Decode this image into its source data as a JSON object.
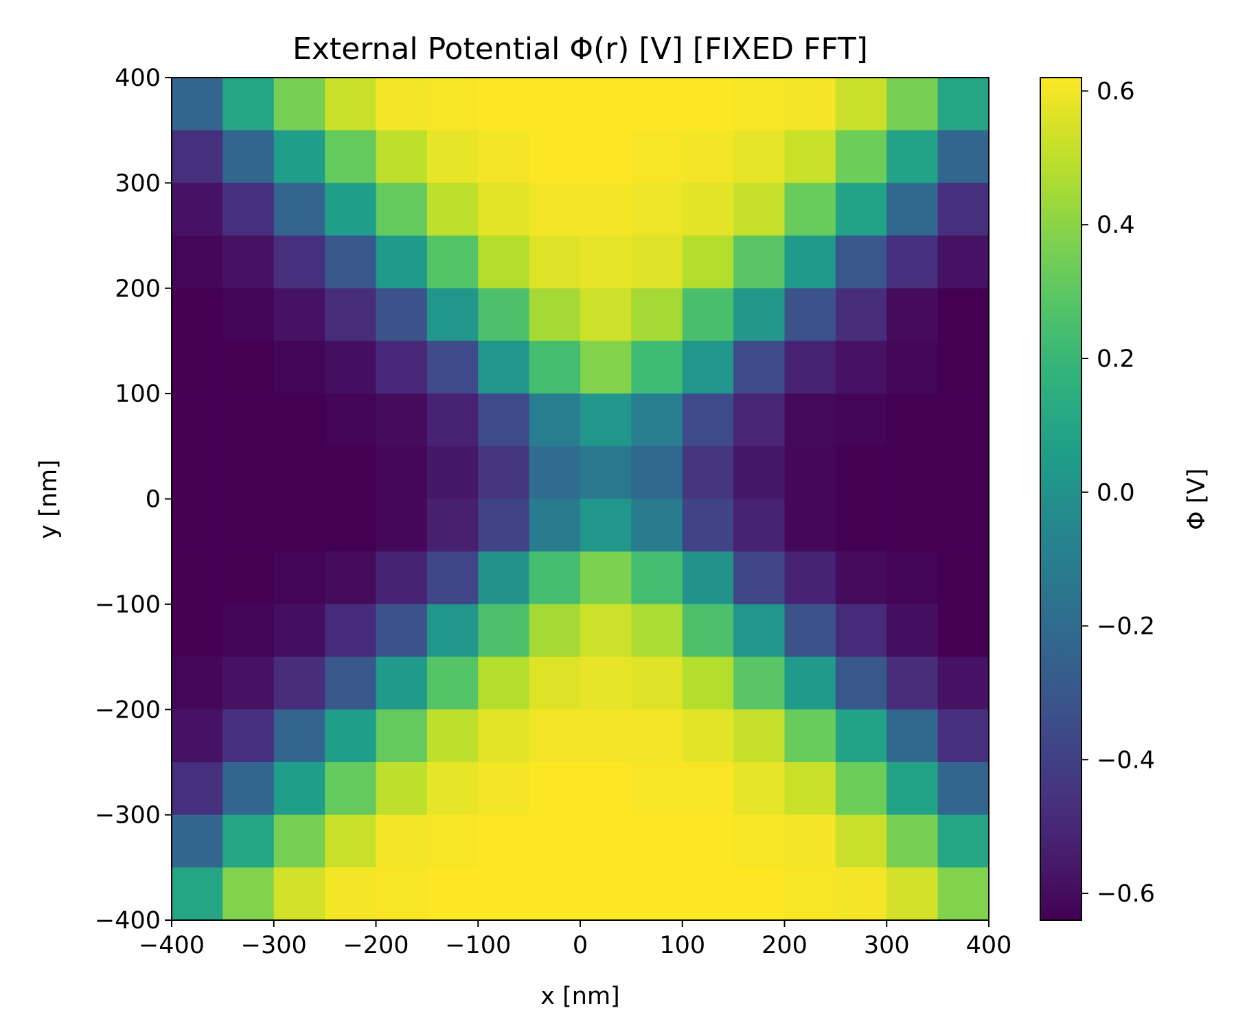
{
  "chart_data": {
    "type": "heatmap",
    "title": "External Potential Φ(r) [V] [FIXED FFT]",
    "xlabel": "x [nm]",
    "ylabel": "y [nm]",
    "colorbar_label": "Φ [V]",
    "colormap": "viridis",
    "xlim": [
      -400,
      400
    ],
    "ylim": [
      -400,
      400
    ],
    "x_ticks": [
      -400,
      -300,
      -200,
      -100,
      0,
      100,
      200,
      300,
      400
    ],
    "y_ticks": [
      -400,
      -300,
      -200,
      -100,
      0,
      100,
      200,
      300,
      400
    ],
    "x_tick_labels": [
      "−400",
      "−300",
      "−200",
      "−100",
      "0",
      "100",
      "200",
      "300",
      "400"
    ],
    "y_tick_labels": [
      "−400",
      "−300",
      "−200",
      "−100",
      "0",
      "100",
      "200",
      "300",
      "400"
    ],
    "vmin": -0.64,
    "vmax": 0.62,
    "colorbar_ticks": [
      -0.6,
      -0.4,
      -0.2,
      0.0,
      0.2,
      0.4,
      0.6
    ],
    "colorbar_tick_labels": [
      "−0.6",
      "−0.4",
      "−0.2",
      "0.0",
      "0.2",
      "0.4",
      "0.6"
    ],
    "grid": false,
    "cell_size": 50,
    "x_centers": [
      -375,
      -325,
      -275,
      -225,
      -175,
      -125,
      -75,
      -25,
      25,
      75,
      125,
      175,
      225,
      275,
      325,
      375
    ],
    "y_centers": [
      375,
      325,
      275,
      225,
      175,
      125,
      75,
      25,
      -25,
      -75,
      -125,
      -175,
      -225,
      -275,
      -325,
      -375
    ],
    "values": [
      [
        -0.23,
        0.1,
        0.36,
        0.52,
        0.6,
        0.61,
        0.62,
        0.62,
        0.62,
        0.62,
        0.62,
        0.61,
        0.6,
        0.52,
        0.36,
        0.1
      ],
      [
        -0.47,
        -0.23,
        0.06,
        0.32,
        0.5,
        0.58,
        0.6,
        0.62,
        0.62,
        0.61,
        0.6,
        0.58,
        0.52,
        0.34,
        0.08,
        -0.23
      ],
      [
        -0.58,
        -0.47,
        -0.24,
        0.06,
        0.32,
        0.5,
        0.57,
        0.6,
        0.6,
        0.59,
        0.57,
        0.51,
        0.33,
        0.08,
        -0.22,
        -0.47
      ],
      [
        -0.62,
        -0.58,
        -0.47,
        -0.3,
        0.04,
        0.28,
        0.48,
        0.56,
        0.58,
        0.56,
        0.48,
        0.29,
        0.04,
        -0.3,
        -0.47,
        -0.58
      ],
      [
        -0.64,
        -0.63,
        -0.58,
        -0.48,
        -0.32,
        0.02,
        0.26,
        0.45,
        0.53,
        0.45,
        0.25,
        0.03,
        -0.32,
        -0.48,
        -0.6,
        -0.64
      ],
      [
        -0.64,
        -0.64,
        -0.63,
        -0.59,
        -0.5,
        -0.36,
        0.02,
        0.24,
        0.38,
        0.22,
        0.02,
        -0.36,
        -0.52,
        -0.58,
        -0.62,
        -0.64
      ],
      [
        -0.64,
        -0.64,
        -0.64,
        -0.63,
        -0.6,
        -0.52,
        -0.36,
        -0.1,
        0.02,
        -0.1,
        -0.36,
        -0.51,
        -0.61,
        -0.63,
        -0.64,
        -0.64
      ],
      [
        -0.64,
        -0.64,
        -0.64,
        -0.64,
        -0.62,
        -0.56,
        -0.44,
        -0.2,
        -0.14,
        -0.22,
        -0.44,
        -0.56,
        -0.62,
        -0.64,
        -0.64,
        -0.64
      ],
      [
        -0.64,
        -0.64,
        -0.64,
        -0.64,
        -0.62,
        -0.53,
        -0.39,
        -0.12,
        0.02,
        -0.12,
        -0.39,
        -0.52,
        -0.62,
        -0.64,
        -0.64,
        -0.64
      ],
      [
        -0.64,
        -0.64,
        -0.63,
        -0.6,
        -0.52,
        -0.38,
        0.0,
        0.24,
        0.37,
        0.24,
        0.0,
        -0.38,
        -0.52,
        -0.6,
        -0.63,
        -0.64
      ],
      [
        -0.64,
        -0.63,
        -0.59,
        -0.49,
        -0.32,
        0.02,
        0.26,
        0.45,
        0.53,
        0.46,
        0.26,
        0.02,
        -0.32,
        -0.49,
        -0.59,
        -0.64
      ],
      [
        -0.62,
        -0.58,
        -0.48,
        -0.3,
        0.04,
        0.28,
        0.48,
        0.56,
        0.58,
        0.56,
        0.48,
        0.29,
        0.04,
        -0.3,
        -0.48,
        -0.58
      ],
      [
        -0.58,
        -0.47,
        -0.24,
        0.06,
        0.32,
        0.5,
        0.57,
        0.6,
        0.6,
        0.6,
        0.57,
        0.51,
        0.33,
        0.08,
        -0.22,
        -0.47
      ],
      [
        -0.47,
        -0.23,
        0.06,
        0.32,
        0.5,
        0.58,
        0.6,
        0.62,
        0.62,
        0.61,
        0.61,
        0.58,
        0.52,
        0.34,
        0.08,
        -0.23
      ],
      [
        -0.23,
        0.1,
        0.36,
        0.52,
        0.6,
        0.61,
        0.62,
        0.62,
        0.62,
        0.62,
        0.62,
        0.61,
        0.6,
        0.52,
        0.36,
        0.1
      ],
      [
        0.1,
        0.38,
        0.54,
        0.6,
        0.61,
        0.62,
        0.62,
        0.62,
        0.62,
        0.62,
        0.62,
        0.62,
        0.61,
        0.6,
        0.54,
        0.38
      ]
    ]
  }
}
